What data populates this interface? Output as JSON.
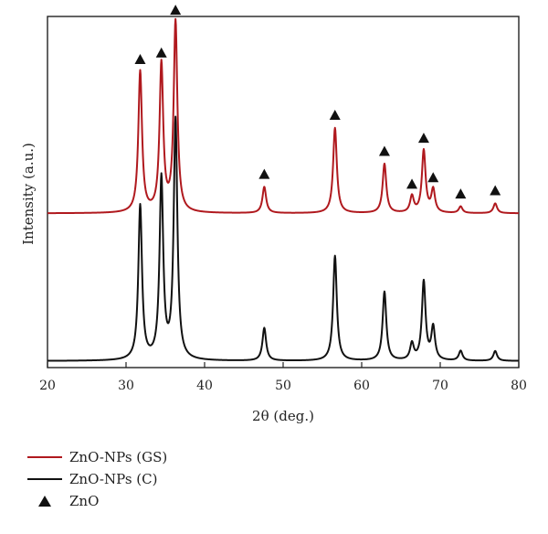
{
  "chart_data": {
    "type": "line",
    "xlabel": "2θ (deg.)",
    "ylabel": "Intensity (a.u.)",
    "xlim": [
      20,
      80
    ],
    "xticks": [
      20,
      30,
      40,
      50,
      60,
      70,
      80
    ],
    "grid": false,
    "legend_position": "bottom-left",
    "series": [
      {
        "name": "ZnO-NPs (GS)",
        "color": "#b0191e",
        "baseline": 0.45,
        "peaks": [
          {
            "x": 31.8,
            "height": 0.43
          },
          {
            "x": 34.5,
            "height": 0.45
          },
          {
            "x": 36.3,
            "height": 0.58
          },
          {
            "x": 47.6,
            "height": 0.08
          },
          {
            "x": 56.6,
            "height": 0.26
          },
          {
            "x": 62.9,
            "height": 0.15
          },
          {
            "x": 66.4,
            "height": 0.05
          },
          {
            "x": 67.9,
            "height": 0.19
          },
          {
            "x": 69.1,
            "height": 0.07
          },
          {
            "x": 72.6,
            "height": 0.02
          },
          {
            "x": 77.0,
            "height": 0.03
          }
        ]
      },
      {
        "name": "ZnO-NPs (C)",
        "color": "#111111",
        "baseline": 0.0,
        "peaks": [
          {
            "x": 31.8,
            "height": 0.47
          },
          {
            "x": 34.5,
            "height": 0.55
          },
          {
            "x": 36.3,
            "height": 0.73
          },
          {
            "x": 47.6,
            "height": 0.1
          },
          {
            "x": 56.6,
            "height": 0.32
          },
          {
            "x": 62.9,
            "height": 0.21
          },
          {
            "x": 66.4,
            "height": 0.05
          },
          {
            "x": 67.9,
            "height": 0.24
          },
          {
            "x": 69.1,
            "height": 0.1
          },
          {
            "x": 72.6,
            "height": 0.03
          },
          {
            "x": 77.0,
            "height": 0.03
          }
        ]
      }
    ],
    "markers": {
      "name": "ZnO",
      "symbol": "triangle",
      "x": [
        31.8,
        34.5,
        36.3,
        47.6,
        56.6,
        62.9,
        66.4,
        67.9,
        69.1,
        72.6,
        77.0
      ]
    }
  },
  "legend": {
    "items": [
      {
        "label": "ZnO-NPs (GS)",
        "color": "#b0191e",
        "kind": "line"
      },
      {
        "label": "ZnO-NPs (C)",
        "color": "#111111",
        "kind": "line"
      },
      {
        "label": "ZnO",
        "color": "#111111",
        "kind": "triangle"
      }
    ]
  }
}
